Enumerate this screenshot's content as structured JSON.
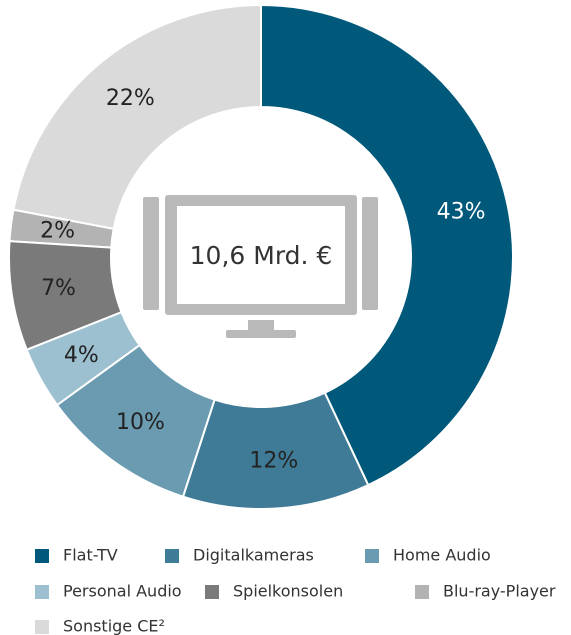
{
  "chart_data": {
    "type": "donut",
    "center_label": "10,6 Mrd. €",
    "categories": [
      "Flat-TV",
      "Digitalkameras",
      "Home Audio",
      "Personal Audio",
      "Spielkonsolen",
      "Blu-ray-Player",
      "Sonstige CE²"
    ],
    "values": [
      43,
      12,
      10,
      4,
      7,
      2,
      22
    ],
    "value_labels": [
      "43%",
      "12%",
      "10%",
      "4%",
      "7%",
      "2%",
      "22%"
    ],
    "colors": [
      "#00587a",
      "#3f7b96",
      "#6b9bb0",
      "#9dc0d0",
      "#7a7a7a",
      "#b3b3b3",
      "#dadada"
    ]
  }
}
